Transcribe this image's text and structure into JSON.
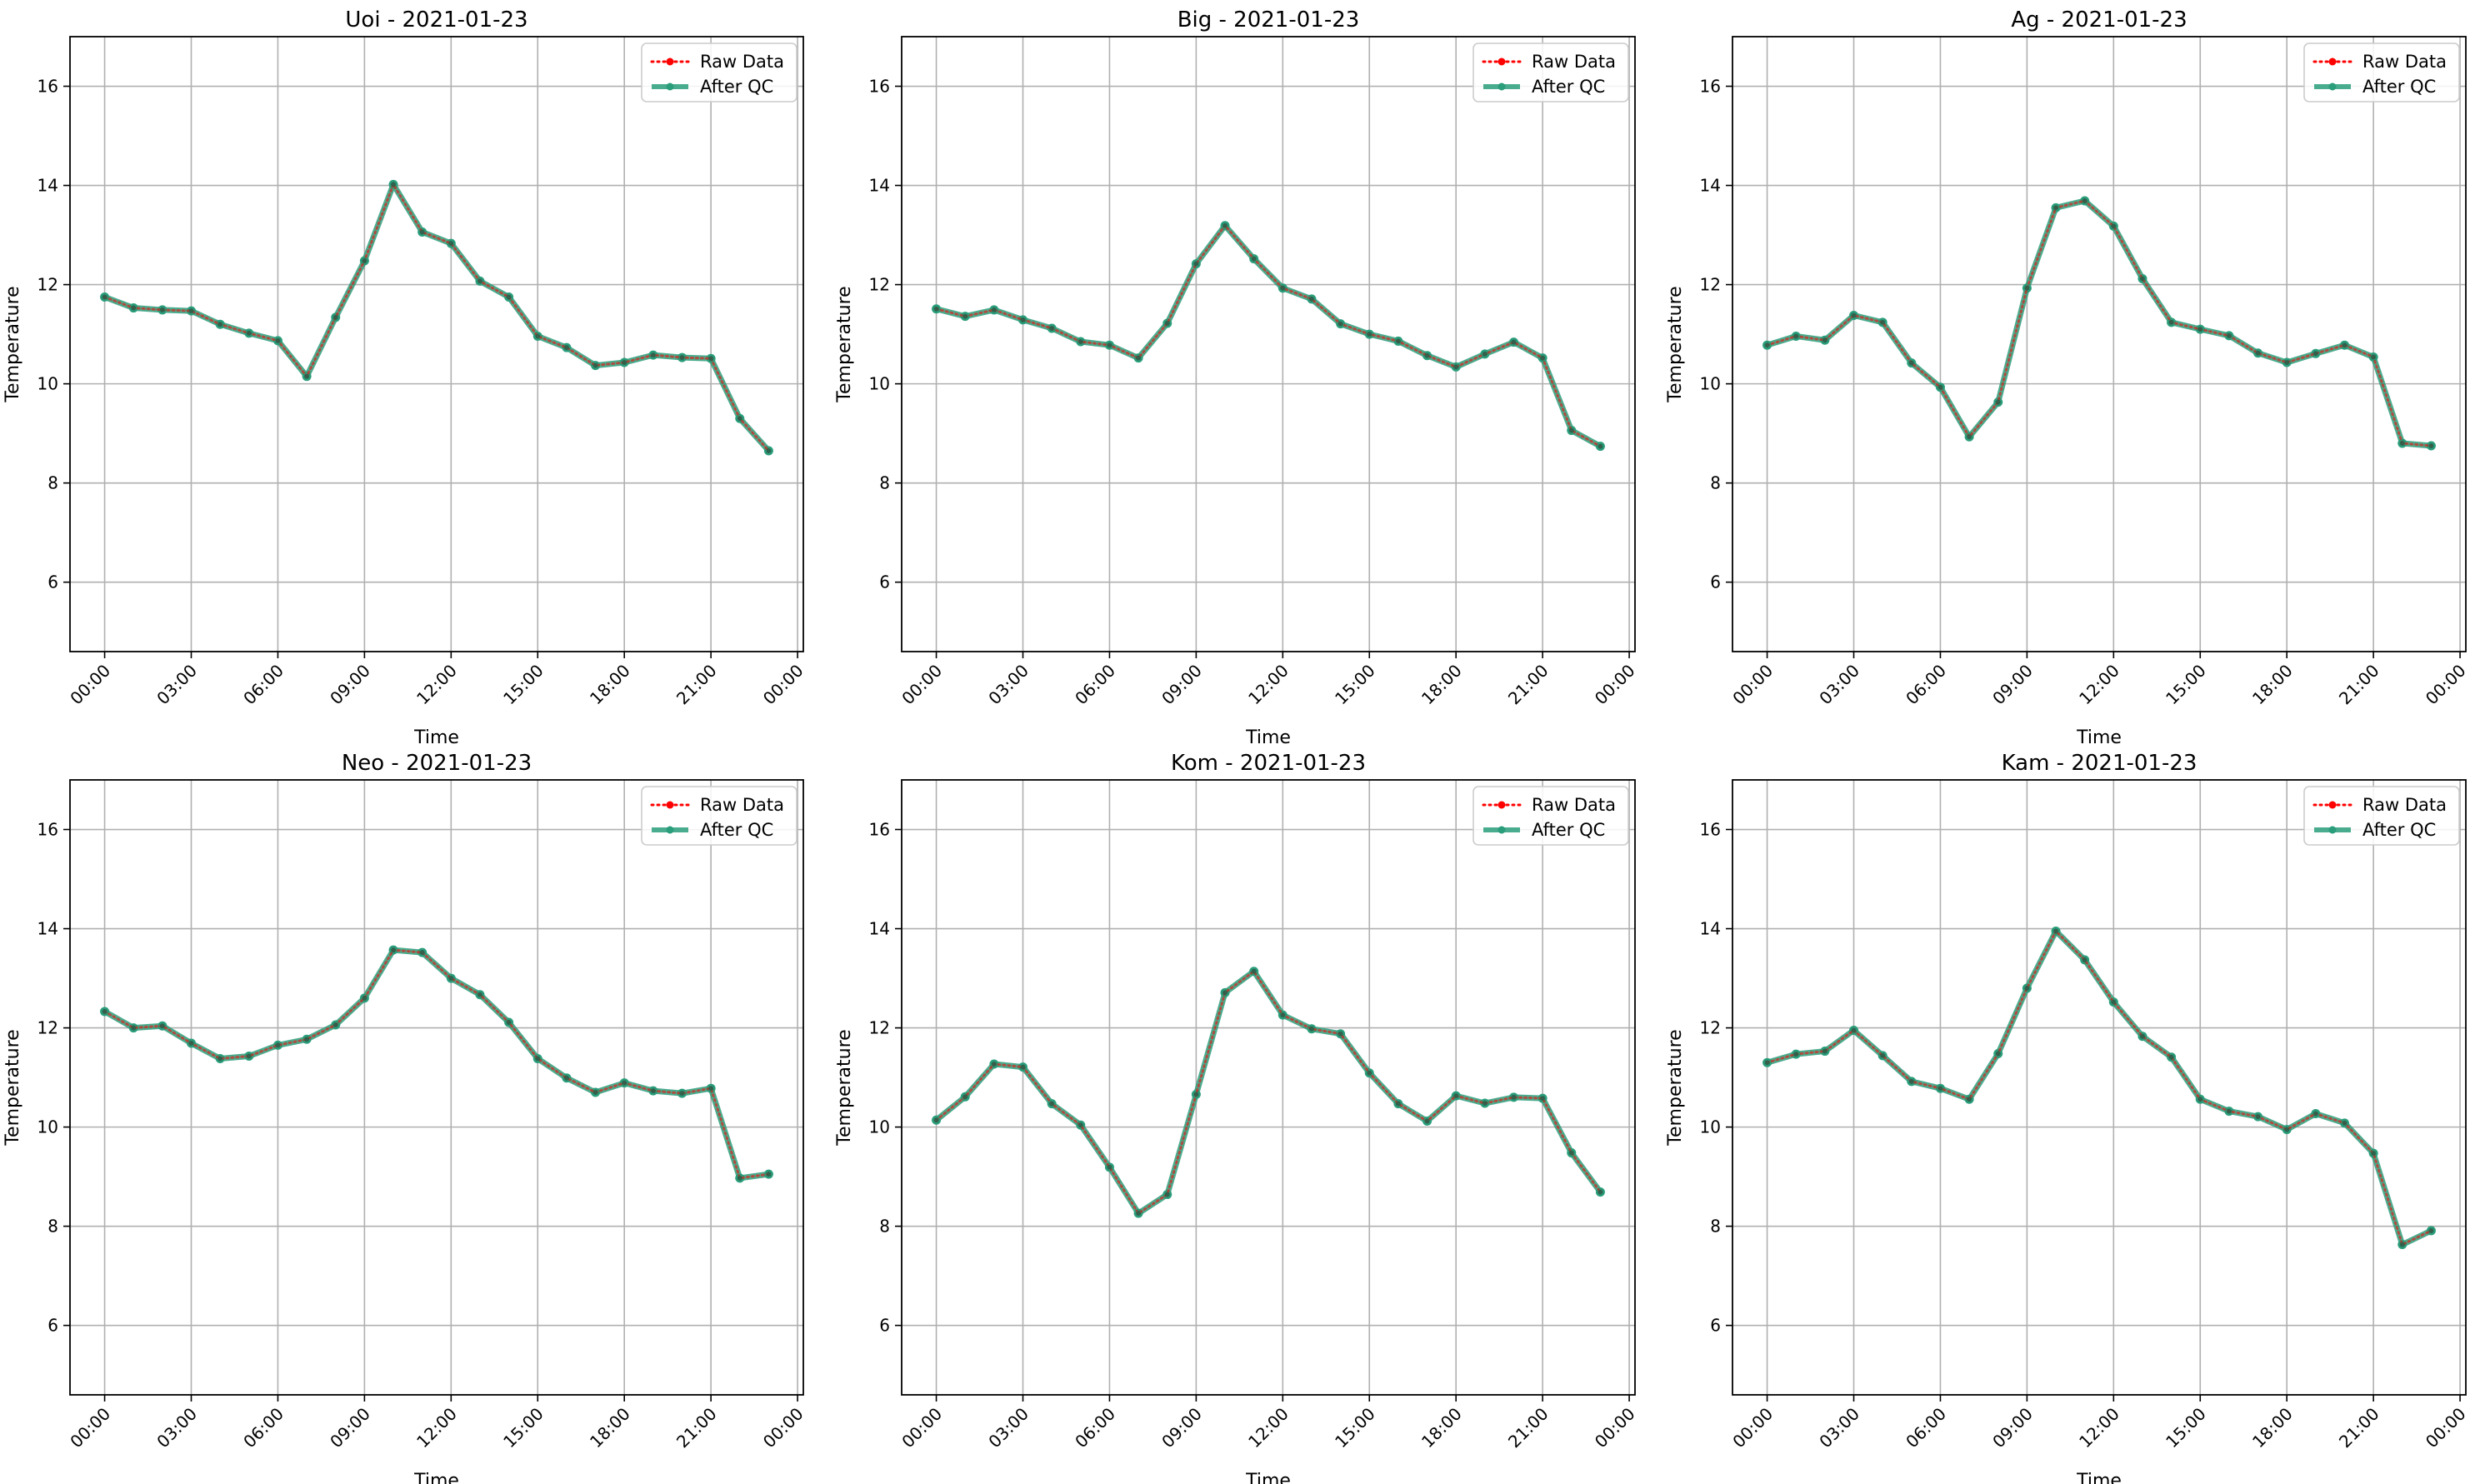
{
  "chart_data": [
    {
      "type": "line",
      "title": "Uoi - 2021-01-23",
      "xlabel": "Time",
      "ylabel": "Temperature",
      "x_tick_labels": [
        "00:00",
        "03:00",
        "06:00",
        "09:00",
        "12:00",
        "15:00",
        "18:00",
        "21:00",
        "00:00"
      ],
      "y_ticks": [
        6,
        8,
        10,
        12,
        14,
        16
      ],
      "xlim_hours": [
        -1.2,
        24.2
      ],
      "ylim": [
        4.6,
        17.0
      ],
      "grid": true,
      "legend": "top-right",
      "x": [
        "00:00",
        "01:00",
        "02:00",
        "03:00",
        "04:00",
        "05:00",
        "06:00",
        "07:00",
        "08:00",
        "09:00",
        "10:00",
        "11:00",
        "12:00",
        "13:00",
        "14:00",
        "15:00",
        "16:00",
        "17:00",
        "18:00",
        "19:00",
        "20:00",
        "21:00",
        "22:00",
        "23:00"
      ],
      "series": [
        {
          "name": "Raw Data",
          "color": "#ff0000",
          "style": "dotted",
          "values": [
            11.75,
            11.53,
            11.49,
            11.47,
            11.2,
            11.02,
            10.87,
            10.15,
            11.34,
            12.48,
            14.02,
            13.06,
            12.83,
            12.07,
            11.75,
            10.96,
            10.73,
            10.37,
            10.43,
            10.58,
            10.53,
            10.51,
            9.3,
            8.65
          ]
        },
        {
          "name": "After QC",
          "color": "#2a9d7a",
          "style": "solid",
          "values": [
            11.75,
            11.53,
            11.49,
            11.47,
            11.2,
            11.02,
            10.87,
            10.15,
            11.34,
            12.48,
            14.02,
            13.06,
            12.83,
            12.07,
            11.75,
            10.96,
            10.73,
            10.37,
            10.43,
            10.58,
            10.53,
            10.51,
            9.3,
            8.65
          ]
        }
      ]
    },
    {
      "type": "line",
      "title": "Big - 2021-01-23",
      "xlabel": "Time",
      "ylabel": "Temperature",
      "x_tick_labels": [
        "00:00",
        "03:00",
        "06:00",
        "09:00",
        "12:00",
        "15:00",
        "18:00",
        "21:00",
        "00:00"
      ],
      "y_ticks": [
        6,
        8,
        10,
        12,
        14,
        16
      ],
      "xlim_hours": [
        -1.2,
        24.2
      ],
      "ylim": [
        4.6,
        17.0
      ],
      "grid": true,
      "legend": "top-right",
      "x": [
        "00:00",
        "01:00",
        "02:00",
        "03:00",
        "04:00",
        "05:00",
        "06:00",
        "07:00",
        "08:00",
        "09:00",
        "10:00",
        "11:00",
        "12:00",
        "13:00",
        "14:00",
        "15:00",
        "16:00",
        "17:00",
        "18:00",
        "19:00",
        "20:00",
        "21:00",
        "22:00",
        "23:00"
      ],
      "series": [
        {
          "name": "Raw Data",
          "color": "#ff0000",
          "style": "dotted",
          "values": [
            11.51,
            11.36,
            11.49,
            11.29,
            11.12,
            10.85,
            10.78,
            10.52,
            11.22,
            12.42,
            13.19,
            12.52,
            11.93,
            11.71,
            11.21,
            11.0,
            10.86,
            10.57,
            10.34,
            10.6,
            10.84,
            10.52,
            9.06,
            8.74
          ]
        },
        {
          "name": "After QC",
          "color": "#2a9d7a",
          "style": "solid",
          "values": [
            11.51,
            11.36,
            11.49,
            11.29,
            11.12,
            10.85,
            10.78,
            10.52,
            11.22,
            12.42,
            13.19,
            12.52,
            11.93,
            11.71,
            11.21,
            11.0,
            10.86,
            10.57,
            10.34,
            10.6,
            10.84,
            10.52,
            9.06,
            8.74
          ]
        }
      ]
    },
    {
      "type": "line",
      "title": "Ag - 2021-01-23",
      "xlabel": "Time",
      "ylabel": "Temperature",
      "x_tick_labels": [
        "00:00",
        "03:00",
        "06:00",
        "09:00",
        "12:00",
        "15:00",
        "18:00",
        "21:00",
        "00:00"
      ],
      "y_ticks": [
        6,
        8,
        10,
        12,
        14,
        16
      ],
      "xlim_hours": [
        -1.2,
        24.2
      ],
      "ylim": [
        4.6,
        17.0
      ],
      "grid": true,
      "legend": "top-right",
      "x": [
        "00:00",
        "01:00",
        "02:00",
        "03:00",
        "04:00",
        "05:00",
        "06:00",
        "07:00",
        "08:00",
        "09:00",
        "10:00",
        "11:00",
        "12:00",
        "13:00",
        "14:00",
        "15:00",
        "16:00",
        "17:00",
        "18:00",
        "19:00",
        "20:00",
        "21:00",
        "22:00",
        "23:00"
      ],
      "series": [
        {
          "name": "Raw Data",
          "color": "#ff0000",
          "style": "dotted",
          "values": [
            10.78,
            10.96,
            10.88,
            11.38,
            11.24,
            10.42,
            9.93,
            8.93,
            9.63,
            11.93,
            13.55,
            13.69,
            13.18,
            12.12,
            11.24,
            11.1,
            10.97,
            10.62,
            10.43,
            10.61,
            10.78,
            10.54,
            8.8,
            8.75
          ]
        },
        {
          "name": "After QC",
          "color": "#2a9d7a",
          "style": "solid",
          "values": [
            10.78,
            10.96,
            10.88,
            11.38,
            11.24,
            10.42,
            9.93,
            8.93,
            9.63,
            11.93,
            13.55,
            13.69,
            13.18,
            12.12,
            11.24,
            11.1,
            10.97,
            10.62,
            10.43,
            10.61,
            10.78,
            10.54,
            8.8,
            8.75
          ]
        }
      ]
    },
    {
      "type": "line",
      "title": "Neo - 2021-01-23",
      "xlabel": "Time",
      "ylabel": "Temperature",
      "x_tick_labels": [
        "00:00",
        "03:00",
        "06:00",
        "09:00",
        "12:00",
        "15:00",
        "18:00",
        "21:00",
        "00:00"
      ],
      "y_ticks": [
        6,
        8,
        10,
        12,
        14,
        16
      ],
      "xlim_hours": [
        -1.2,
        24.2
      ],
      "ylim": [
        4.6,
        17.0
      ],
      "grid": true,
      "legend": "top-right",
      "x": [
        "00:00",
        "01:00",
        "02:00",
        "03:00",
        "04:00",
        "05:00",
        "06:00",
        "07:00",
        "08:00",
        "09:00",
        "10:00",
        "11:00",
        "12:00",
        "13:00",
        "14:00",
        "15:00",
        "16:00",
        "17:00",
        "18:00",
        "19:00",
        "20:00",
        "21:00",
        "22:00",
        "23:00"
      ],
      "series": [
        {
          "name": "Raw Data",
          "color": "#ff0000",
          "style": "dotted",
          "values": [
            12.33,
            12.0,
            12.04,
            11.69,
            11.38,
            11.43,
            11.65,
            11.77,
            12.06,
            12.6,
            13.57,
            13.52,
            13.0,
            12.67,
            12.11,
            11.38,
            10.99,
            10.7,
            10.89,
            10.73,
            10.68,
            10.78,
            8.97,
            9.05
          ]
        },
        {
          "name": "After QC",
          "color": "#2a9d7a",
          "style": "solid",
          "values": [
            12.33,
            12.0,
            12.04,
            11.69,
            11.38,
            11.43,
            11.65,
            11.77,
            12.06,
            12.6,
            13.57,
            13.52,
            13.0,
            12.67,
            12.11,
            11.38,
            10.99,
            10.7,
            10.89,
            10.73,
            10.68,
            10.78,
            8.97,
            9.05
          ]
        }
      ]
    },
    {
      "type": "line",
      "title": "Kom - 2021-01-23",
      "xlabel": "Time",
      "ylabel": "Temperature",
      "x_tick_labels": [
        "00:00",
        "03:00",
        "06:00",
        "09:00",
        "12:00",
        "15:00",
        "18:00",
        "21:00",
        "00:00"
      ],
      "y_ticks": [
        6,
        8,
        10,
        12,
        14,
        16
      ],
      "xlim_hours": [
        -1.2,
        24.2
      ],
      "ylim": [
        4.6,
        17.0
      ],
      "grid": true,
      "legend": "top-right",
      "x": [
        "00:00",
        "01:00",
        "02:00",
        "03:00",
        "04:00",
        "05:00",
        "06:00",
        "07:00",
        "08:00",
        "09:00",
        "10:00",
        "11:00",
        "12:00",
        "13:00",
        "14:00",
        "15:00",
        "16:00",
        "17:00",
        "18:00",
        "19:00",
        "20:00",
        "21:00",
        "22:00",
        "23:00"
      ],
      "series": [
        {
          "name": "Raw Data",
          "color": "#ff0000",
          "style": "dotted",
          "values": [
            10.14,
            10.61,
            11.27,
            11.21,
            10.47,
            10.04,
            9.19,
            8.26,
            8.64,
            10.66,
            12.71,
            13.14,
            12.26,
            11.98,
            11.88,
            11.09,
            10.47,
            10.12,
            10.63,
            10.48,
            10.6,
            10.58,
            9.48,
            8.69
          ]
        },
        {
          "name": "After QC",
          "color": "#2a9d7a",
          "style": "solid",
          "values": [
            10.14,
            10.61,
            11.27,
            11.21,
            10.47,
            10.04,
            9.19,
            8.26,
            8.64,
            10.66,
            12.71,
            13.14,
            12.26,
            11.98,
            11.88,
            11.09,
            10.47,
            10.12,
            10.63,
            10.48,
            10.6,
            10.58,
            9.48,
            8.69
          ]
        }
      ]
    },
    {
      "type": "line",
      "title": "Kam - 2021-01-23",
      "xlabel": "Time",
      "ylabel": "Temperature",
      "x_tick_labels": [
        "00:00",
        "03:00",
        "06:00",
        "09:00",
        "12:00",
        "15:00",
        "18:00",
        "21:00",
        "00:00"
      ],
      "y_ticks": [
        6,
        8,
        10,
        12,
        14,
        16
      ],
      "xlim_hours": [
        -1.2,
        24.2
      ],
      "ylim": [
        4.6,
        17.0
      ],
      "grid": true,
      "legend": "top-right",
      "x": [
        "00:00",
        "01:00",
        "02:00",
        "03:00",
        "04:00",
        "05:00",
        "06:00",
        "07:00",
        "08:00",
        "09:00",
        "10:00",
        "11:00",
        "12:00",
        "13:00",
        "14:00",
        "15:00",
        "16:00",
        "17:00",
        "18:00",
        "19:00",
        "20:00",
        "21:00",
        "22:00",
        "23:00"
      ],
      "series": [
        {
          "name": "Raw Data",
          "color": "#ff0000",
          "style": "dotted",
          "values": [
            11.3,
            11.47,
            11.53,
            11.95,
            11.44,
            10.92,
            10.78,
            10.56,
            11.48,
            12.8,
            13.95,
            13.37,
            12.52,
            11.83,
            11.41,
            10.56,
            10.32,
            10.21,
            9.95,
            10.27,
            10.08,
            9.47,
            7.63,
            7.91
          ]
        },
        {
          "name": "After QC",
          "color": "#2a9d7a",
          "style": "solid",
          "values": [
            11.3,
            11.47,
            11.53,
            11.95,
            11.44,
            10.92,
            10.78,
            10.56,
            11.48,
            12.8,
            13.95,
            13.37,
            12.52,
            11.83,
            11.41,
            10.56,
            10.32,
            10.21,
            9.95,
            10.27,
            10.08,
            9.47,
            7.63,
            7.91
          ]
        }
      ]
    }
  ]
}
